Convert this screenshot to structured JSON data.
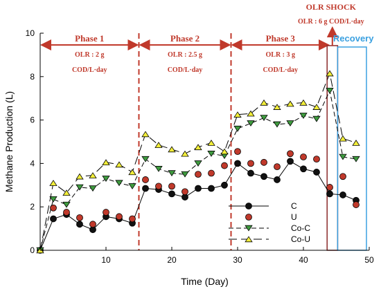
{
  "chart_data": {
    "type": "line",
    "xlabel": "Time (Day)",
    "ylabel": "Methane Production (L)",
    "xlim": [
      0,
      50
    ],
    "ylim": [
      0,
      10
    ],
    "xticks": [
      "10",
      "20",
      "30",
      "40",
      "50"
    ],
    "yticks": [
      "0",
      "2",
      "4",
      "6",
      "8",
      "10"
    ],
    "phases": [
      {
        "title": "Phase 1",
        "olr": "OLR : 2 g",
        "unit": "COD/L·day",
        "start": 0,
        "end": 15
      },
      {
        "title": "Phase 2",
        "olr": "OLR : 2.5 g",
        "unit": "COD/L·day",
        "start": 15,
        "end": 29
      },
      {
        "title": "Phase 3",
        "olr": "OLR : 3 g",
        "unit": "COD/L·day",
        "start": 29,
        "end": 44
      }
    ],
    "shock": {
      "title": "OLR SHOCK",
      "olr": "OLR : 6  g COD/L·day",
      "start": 43.6,
      "end": 45.2
    },
    "recovery": {
      "label": "Recovery",
      "start": 45.2,
      "end": 50
    },
    "series": [
      {
        "name": "C",
        "marker": "circle",
        "fill": "#111111",
        "line": "solid",
        "x": [
          0,
          2,
          4,
          6,
          8,
          10,
          12,
          14,
          16,
          18,
          20,
          22,
          24,
          26,
          28,
          30,
          32,
          34,
          36,
          38,
          40,
          42,
          44,
          46,
          48
        ],
        "y": [
          0,
          1.45,
          1.65,
          1.2,
          0.95,
          1.55,
          1.45,
          1.25,
          2.85,
          2.8,
          2.6,
          2.45,
          2.85,
          2.85,
          3.0,
          4.0,
          3.55,
          3.4,
          3.25,
          4.1,
          3.75,
          3.6,
          2.6,
          2.55,
          2.3
        ]
      },
      {
        "name": "U",
        "marker": "circle",
        "fill": "#c0392b",
        "line": "none",
        "x": [
          2,
          4,
          6,
          8,
          10,
          12,
          14,
          16,
          18,
          20,
          22,
          24,
          26,
          28,
          30,
          32,
          34,
          36,
          38,
          40,
          42,
          44,
          46,
          48
        ],
        "y": [
          1.95,
          1.75,
          1.5,
          1.2,
          1.75,
          1.55,
          1.45,
          3.25,
          2.95,
          2.95,
          2.7,
          3.5,
          3.55,
          3.9,
          4.55,
          4.0,
          4.05,
          3.85,
          4.45,
          4.3,
          4.2,
          2.9,
          3.4,
          2.1
        ]
      },
      {
        "name": "Co-C",
        "marker": "triangle-down",
        "fill": "#3f9b3f",
        "line": "dashed",
        "x": [
          0,
          2,
          4,
          6,
          8,
          10,
          12,
          14,
          16,
          18,
          20,
          22,
          24,
          26,
          28,
          30,
          32,
          34,
          36,
          38,
          40,
          42,
          44,
          46,
          48
        ],
        "y": [
          0,
          2.35,
          2.1,
          2.9,
          2.85,
          3.3,
          3.1,
          2.95,
          4.2,
          3.75,
          3.55,
          3.5,
          4.0,
          4.45,
          4.35,
          5.6,
          5.85,
          6.1,
          5.8,
          5.85,
          6.2,
          6.05,
          7.35,
          4.3,
          4.2
        ]
      },
      {
        "name": "Co-U",
        "marker": "triangle-up",
        "fill": "#f2ee3a",
        "line": "longdash",
        "x": [
          0,
          2,
          4,
          6,
          8,
          10,
          12,
          14,
          16,
          18,
          20,
          22,
          24,
          26,
          28,
          30,
          32,
          34,
          36,
          38,
          40,
          42,
          44,
          46,
          48
        ],
        "y": [
          0,
          3.1,
          2.65,
          3.4,
          3.45,
          4.05,
          3.95,
          3.6,
          5.35,
          4.85,
          4.65,
          4.45,
          4.75,
          4.95,
          4.55,
          6.25,
          6.3,
          6.8,
          6.6,
          6.75,
          6.8,
          6.6,
          8.15,
          5.15,
          4.95
        ]
      }
    ],
    "colors": {
      "phase_red": "#c0392b",
      "recovery_blue": "#3aa0e0",
      "axis": "#000000"
    },
    "grid": false,
    "legend_position": "bottom-center"
  }
}
